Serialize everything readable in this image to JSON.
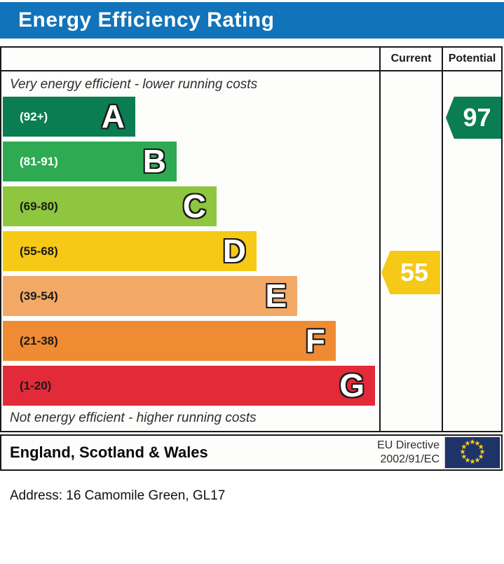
{
  "title": "Energy Efficiency Rating",
  "title_bg": "#1173b9",
  "columns": {
    "current": "Current",
    "potential": "Potential"
  },
  "top_note": "Very energy efficient - lower running costs",
  "bottom_note": "Not energy efficient - higher running costs",
  "bands": [
    {
      "letter": "A",
      "range": "(92+)",
      "color": "#0b7d52",
      "label_color": "#ffffff"
    },
    {
      "letter": "B",
      "range": "(81-91)",
      "color": "#2eaa52",
      "label_color": "#ffffff"
    },
    {
      "letter": "C",
      "range": "(69-80)",
      "color": "#8ec63f",
      "label_color": "#1a1a1a"
    },
    {
      "letter": "D",
      "range": "(55-68)",
      "color": "#f5c916",
      "label_color": "#1a1a1a"
    },
    {
      "letter": "E",
      "range": "(39-54)",
      "color": "#f2a966",
      "label_color": "#1a1a1a"
    },
    {
      "letter": "F",
      "range": "(21-38)",
      "color": "#ee8b33",
      "label_color": "#1a1a1a"
    },
    {
      "letter": "G",
      "range": "(1-20)",
      "color": "#e22a38",
      "label_color": "#1a1a1a"
    }
  ],
  "current": {
    "value": "55",
    "color": "#f5c916"
  },
  "potential": {
    "value": "97",
    "color": "#0b7d52"
  },
  "footer": {
    "region": "England, Scotland & Wales",
    "directive_line1": "EU Directive",
    "directive_line2": "2002/91/EC",
    "eu_flag_bg": "#1e3368",
    "eu_star_color": "#fdd017"
  },
  "address_line": "Address: 16 Camomile Green, GL17",
  "chart_data": {
    "type": "bar",
    "title": "Energy Efficiency Rating",
    "categories": [
      "A",
      "B",
      "C",
      "D",
      "E",
      "F",
      "G"
    ],
    "ranges": [
      "92+",
      "81-91",
      "69-80",
      "55-68",
      "39-54",
      "21-38",
      "1-20"
    ],
    "band_colors": [
      "#0b7d52",
      "#2eaa52",
      "#8ec63f",
      "#f5c916",
      "#f2a966",
      "#ee8b33",
      "#e22a38"
    ],
    "bar_relative_lengths": [
      189,
      248,
      305,
      362,
      420,
      475,
      531
    ],
    "current_rating": 55,
    "current_band": "D",
    "potential_rating": 97,
    "potential_band": "A",
    "value_scale": [
      1,
      100
    ],
    "legend_position": "top-right-columns",
    "annotations": [
      "Very energy efficient - lower running costs",
      "Not energy efficient - higher running costs",
      "England, Scotland & Wales",
      "EU Directive 2002/91/EC"
    ]
  }
}
